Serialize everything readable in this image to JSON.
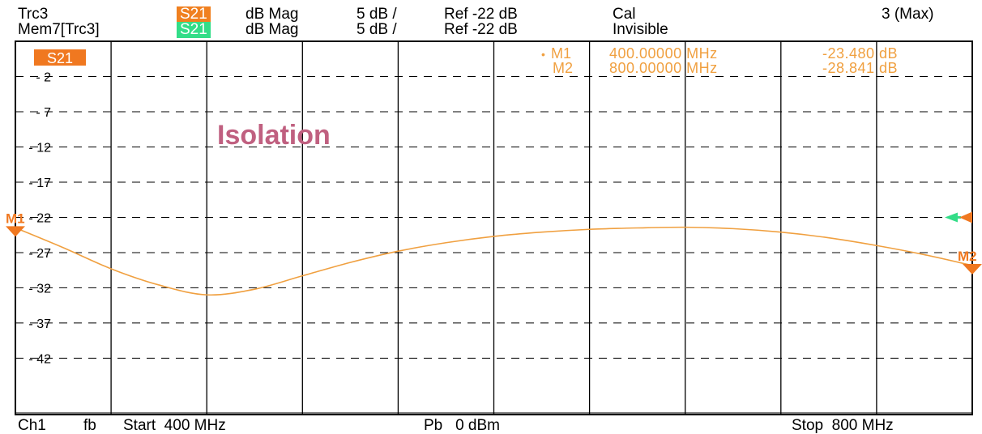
{
  "header": {
    "row1": {
      "trace": "Trc3",
      "param": "S21",
      "format": "dB Mag",
      "scale": "5 dB /",
      "ref": "Ref -22 dB",
      "status": "Cal",
      "right": "3 (Max)"
    },
    "row2": {
      "trace": "Mem7[Trc3]",
      "param": "S21",
      "format": "dB Mag",
      "scale": "5 dB /",
      "ref": "Ref -22 dB",
      "status": "Invisible"
    }
  },
  "plot": {
    "badge": "S21",
    "annotation": "Isolation",
    "markers": [
      {
        "name": "M1",
        "freq": "400.00000 MHz",
        "value": "-23.480 dB",
        "active": true
      },
      {
        "name": "M2",
        "freq": "800.00000 MHz",
        "value": "-28.841 dB",
        "active": false
      }
    ],
    "marker_tags": {
      "m1": "M1",
      "m2": "M2"
    }
  },
  "footer": {
    "channel": "Ch1",
    "mode": "fb",
    "start": "Start  400 MHz",
    "power": "Pb   0 dBm",
    "stop": "Stop  800 MHz"
  },
  "colors": {
    "trace": "#f0a040",
    "marker": "#f07820",
    "memory": "#33dd88",
    "annotation": "#c06080",
    "grid": "#000000"
  },
  "chart_data": {
    "type": "line",
    "title": "Isolation",
    "xlabel": "",
    "ylabel": "",
    "x_unit": "MHz",
    "y_unit": "dB",
    "xlim": [
      400,
      800
    ],
    "ylim": [
      -50,
      3
    ],
    "y_ticks": [
      -2,
      -7,
      -12,
      -17,
      -22,
      -27,
      -32,
      -37,
      -42
    ],
    "x_divisions": 10,
    "grid": true,
    "series": [
      {
        "name": "S21",
        "x": [
          400,
          420,
          440,
          460,
          480,
          500,
          520,
          540,
          560,
          580,
          600,
          620,
          640,
          660,
          680,
          700,
          720,
          740,
          760,
          780,
          800
        ],
        "y": [
          -23.48,
          -26.3,
          -29.3,
          -31.6,
          -33.0,
          -32.2,
          -30.3,
          -28.4,
          -26.8,
          -25.6,
          -24.7,
          -24.1,
          -23.7,
          -23.5,
          -23.4,
          -23.6,
          -24.1,
          -24.9,
          -26.0,
          -27.3,
          -28.84
        ]
      }
    ],
    "markers": [
      {
        "name": "M1",
        "x": 400,
        "y": -23.48
      },
      {
        "name": "M2",
        "x": 800,
        "y": -28.841
      }
    ],
    "reference_level": -22
  }
}
